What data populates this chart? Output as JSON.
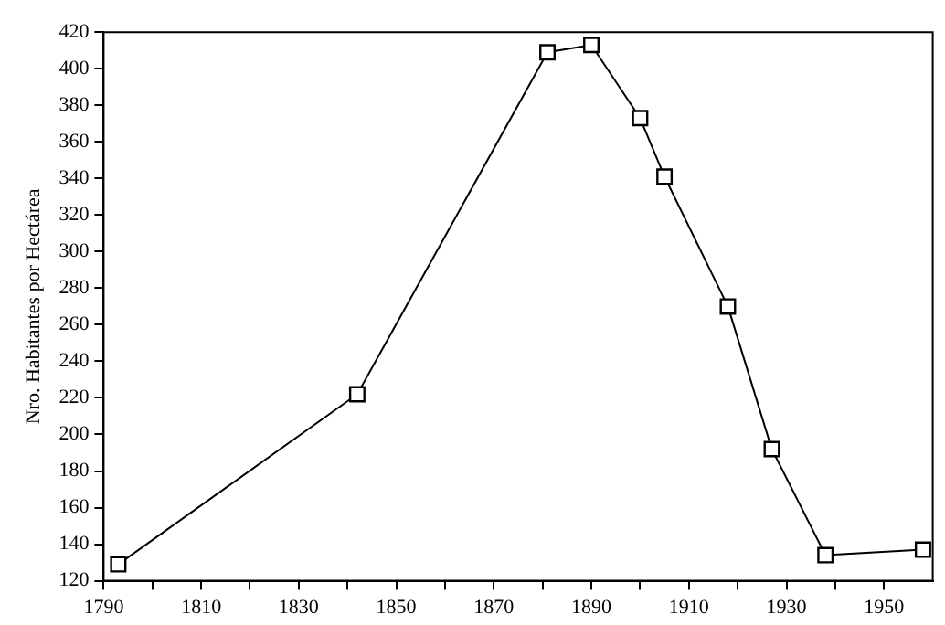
{
  "chart_data": {
    "type": "line",
    "ylabel": "Nro. Habitantes por Hectárea",
    "x": [
      1793,
      1842,
      1881,
      1890,
      1900,
      1905,
      1918,
      1927,
      1938,
      1958
    ],
    "series": [
      {
        "color": "#000000",
        "values": [
          129,
          222,
          409,
          413,
          373,
          341,
          270,
          192,
          134,
          137
        ]
      }
    ],
    "xlim": [
      1790,
      1960
    ],
    "xticks": [
      1790,
      {
        "value": 1800,
        "label": null
      },
      1810,
      {
        "value": 1820,
        "label": null
      },
      1830,
      {
        "value": 1840,
        "label": null
      },
      1850,
      {
        "value": 1860,
        "label": null
      },
      1870,
      {
        "value": 1880,
        "label": null
      },
      1890,
      {
        "value": 1900,
        "label": null
      },
      1910,
      {
        "value": 1920,
        "label": null
      },
      1930,
      {
        "value": 1940,
        "label": null
      },
      1950
    ],
    "ylim": [
      120,
      420
    ],
    "yticks": [
      120,
      140,
      160,
      180,
      200,
      220,
      240,
      260,
      280,
      300,
      320,
      340,
      360,
      380,
      400,
      420
    ],
    "grid": false,
    "legend": false,
    "marker": "square",
    "line_style": "solid"
  }
}
